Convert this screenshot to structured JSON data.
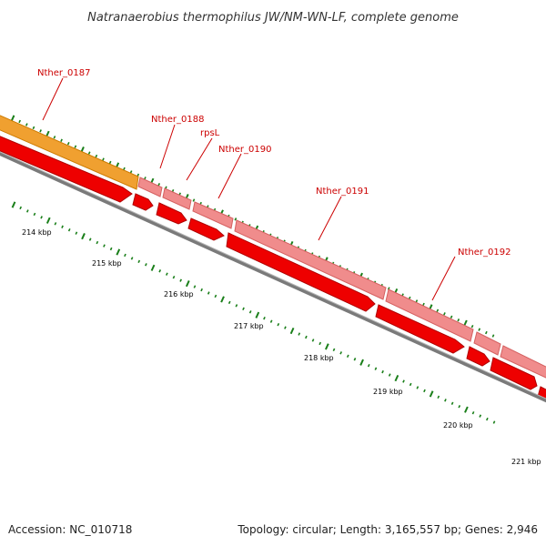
{
  "title": "Natranaerobius thermophilus JW/NM-WN-LF, complete genome",
  "footer": {
    "accession": "Accession: NC_010718",
    "stats": "Topology: circular; Length: 3,165,557 bp; Genes: 2,946"
  },
  "gene_labels": [
    "Nther_0187",
    "Nther_0188",
    "rpsL",
    "Nther_0190",
    "Nther_0191",
    "Nther_0192"
  ],
  "tick_labels": [
    "214 kbp",
    "215 kbp",
    "216 kbp",
    "217 kbp",
    "218 kbp",
    "219 kbp",
    "220 kbp",
    "221 kbp"
  ],
  "colors": {
    "backbone": "#8a8a8a",
    "cds": "#ee0000",
    "gene_light": "#f08c8c",
    "gene_highlight": "#ff9900",
    "ticks": "#1a7f1a",
    "label": "#cc0000"
  }
}
